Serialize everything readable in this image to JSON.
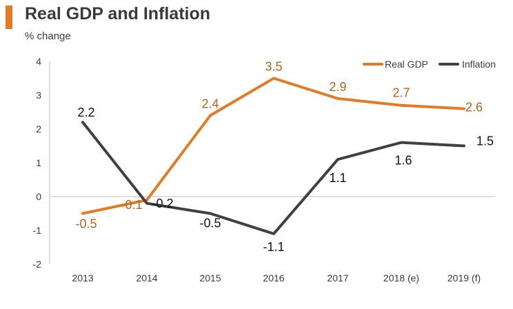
{
  "header": {
    "title": "Real GDP and Inflation",
    "subtitle": "% change"
  },
  "colors": {
    "accent": "#E07B27",
    "gdp": "#E07B27",
    "inflation": "#404040",
    "axis": "#bfbfbf",
    "text": "#3a3a3a"
  },
  "chart_data": {
    "type": "line",
    "title": "Real GDP and Inflation",
    "ylabel": "% change",
    "xlabel": "",
    "categories": [
      "2013",
      "2014",
      "2015",
      "2016",
      "2017",
      "2018 (e)",
      "2019 (f)"
    ],
    "yticks": [
      "4",
      "3",
      "2",
      "1",
      "0",
      "-1",
      "-2"
    ],
    "ylim": [
      -2,
      4
    ],
    "grid": false,
    "legend_position": "top-right",
    "series": [
      {
        "name": "Real GDP",
        "color": "#E07B27",
        "values": [
          -0.5,
          -0.1,
          2.4,
          3.5,
          2.9,
          2.7,
          2.6
        ],
        "labels": [
          "-0.5",
          "-0.1",
          "2.4",
          "3.5",
          "2.9",
          "2.7",
          "2.6"
        ]
      },
      {
        "name": "Inflation",
        "color": "#404040",
        "values": [
          2.2,
          -0.2,
          -0.5,
          -1.1,
          1.1,
          1.6,
          1.5
        ],
        "labels": [
          "2.2",
          "-0.2",
          "-0.5",
          "-1.1",
          "1.1",
          "1.6",
          "1.5"
        ]
      }
    ]
  }
}
